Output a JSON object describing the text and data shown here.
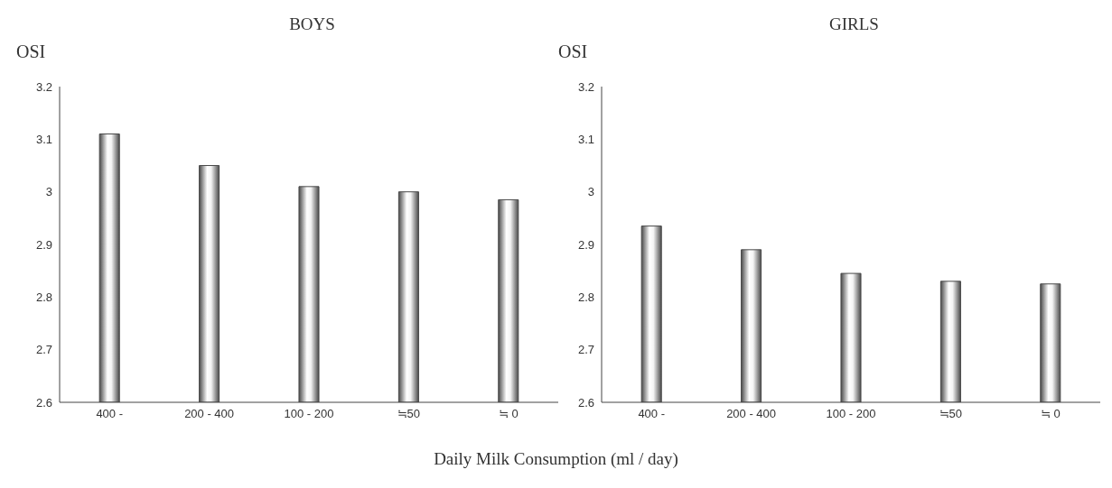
{
  "chart_data": [
    {
      "type": "bar",
      "title": "BOYS",
      "ylabel": "OSI",
      "categories": [
        "400 -",
        "200 - 400",
        "100 - 200",
        "≒50",
        "≒ 0"
      ],
      "values": [
        3.11,
        3.05,
        3.01,
        3.0,
        2.985
      ],
      "color": "#4a4a4a",
      "ylim": [
        2.6,
        3.2
      ],
      "yticks": [
        2.6,
        2.7,
        2.8,
        2.9,
        3,
        3.1,
        3.2
      ],
      "grid": false,
      "legend": false
    },
    {
      "type": "bar",
      "title": "GIRLS",
      "ylabel": "OSI",
      "xlabel": "Daily Milk Consumption (ml / day)",
      "categories": [
        "400 -",
        "200 - 400",
        "100 - 200",
        "≒50",
        "≒ 0"
      ],
      "values": [
        2.935,
        2.89,
        2.845,
        2.83,
        2.825
      ],
      "color": "#4a4a4a",
      "ylim": [
        2.6,
        3.2
      ],
      "yticks": [
        2.6,
        2.7,
        2.8,
        2.9,
        3,
        3.1,
        3.2
      ],
      "grid": false,
      "legend": false
    }
  ]
}
